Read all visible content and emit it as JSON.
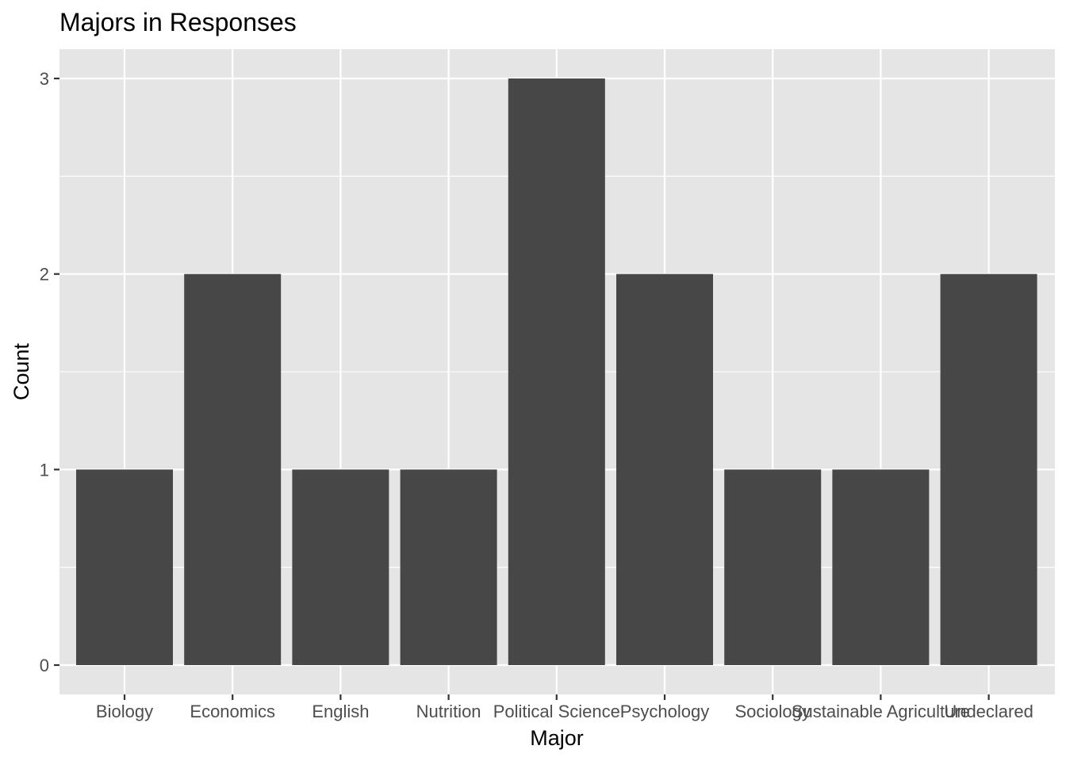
{
  "chart_data": {
    "type": "bar",
    "title": "Majors in Responses",
    "xlabel": "Major",
    "ylabel": "Count",
    "categories": [
      "Biology",
      "Economics",
      "English",
      "Nutrition",
      "Political Science",
      "Psychology",
      "Sociology",
      "Sustainable Agriculture",
      "Undeclared"
    ],
    "values": [
      1,
      2,
      1,
      1,
      3,
      2,
      1,
      1,
      2
    ],
    "ylim": [
      0,
      3
    ],
    "yticks": [
      0,
      1,
      2,
      3
    ],
    "grid": true,
    "colors": {
      "panel": "#e5e5e5",
      "grid": "#ffffff",
      "bar": "#474747",
      "tick": "#333333",
      "tick_text": "#4d4d4d"
    }
  }
}
